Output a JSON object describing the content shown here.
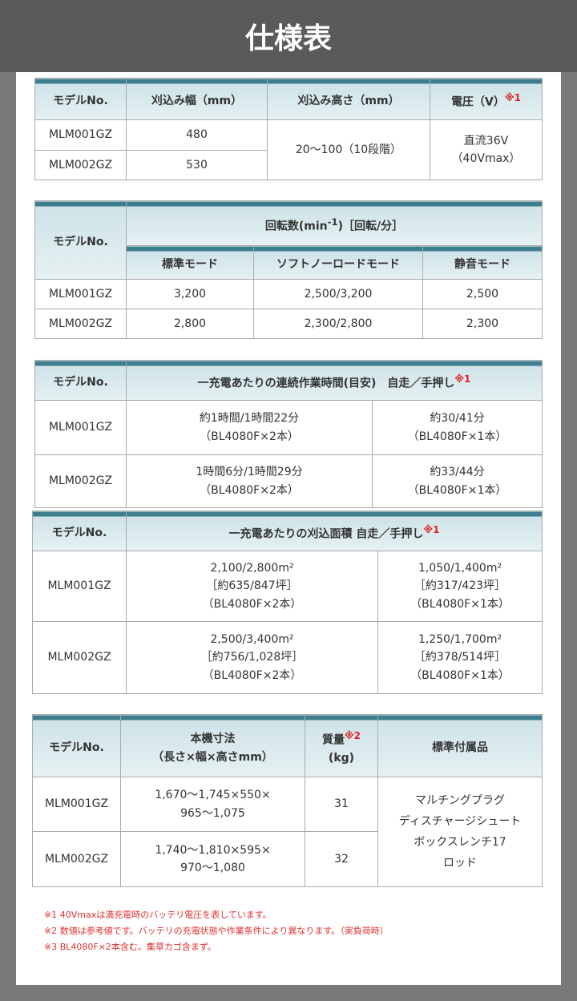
{
  "title": "仕様表",
  "t1": {
    "h": [
      "モデルNo.",
      "刈込み幅（mm）",
      "刈込み高さ（mm）",
      "電圧（V）"
    ],
    "h_note": "※1",
    "rows": [
      [
        "MLM001GZ",
        "480"
      ],
      [
        "MLM002GZ",
        "530"
      ]
    ],
    "height": "20～100（10段階）",
    "voltage1": "直流36V",
    "voltage2": "（40Vmax）"
  },
  "t2": {
    "h_model": "モデルNo.",
    "h_group": "回転数(min-1)［回転/分］",
    "h_group_a": "回転数(min",
    "h_group_sup": "-1",
    "h_group_b": ")［回転/分］",
    "h": [
      "標準モード",
      "ソフトノーロードモード",
      "静音モード"
    ],
    "rows": [
      [
        "MLM001GZ",
        "3,200",
        "2,500/3,200",
        "2,500"
      ],
      [
        "MLM002GZ",
        "2,800",
        "2,300/2,800",
        "2,300"
      ]
    ]
  },
  "t3": {
    "h_model": "モデルNo.",
    "h": "一充電あたりの連続作業時間(目安)　自走／手押し",
    "h_note": "※1",
    "rows": [
      [
        "MLM001GZ",
        "約1時間/1時間22分",
        "（BL4080F×2本）",
        "約30/41分",
        "（BL4080F×1本）"
      ],
      [
        "MLM002GZ",
        "1時間6分/1時間29分",
        "（BL4080F×2本）",
        "約33/44分",
        "（BL4080F×1本）"
      ]
    ]
  },
  "t4": {
    "h_model": "モデルNo.",
    "h": "一充電あたりの刈込面積 自走／手押し",
    "h_note": "※1",
    "rows": [
      [
        "MLM001GZ",
        "2,100/2,800m²",
        "［約635/847坪］",
        "（BL4080F×2本）",
        "1,050/1,400m²",
        "［約317/423坪］",
        "（BL4080F×1本）"
      ],
      [
        "MLM002GZ",
        "2,500/3,400m²",
        "［約756/1,028坪］",
        "（BL4080F×2本）",
        "1,250/1,700m²",
        "［約378/514坪］",
        "（BL4080F×1本）"
      ]
    ]
  },
  "t5": {
    "h_model": "モデルNo.",
    "h_dim1": "本機寸法",
    "h_dim2": "（長さ×幅×高さmm）",
    "h_mass": "質量",
    "h_mass_note": "※2",
    "h_mass_unit": "(kg)",
    "h_acc": "標準付属品",
    "rows": [
      [
        "MLM001GZ",
        "1,670～1,745×550×",
        "965～1,075",
        "31"
      ],
      [
        "MLM002GZ",
        "1,740～1,810×595×",
        "970～1,080",
        "32"
      ]
    ],
    "accessories": [
      "マルチングプラグ",
      "ディスチャージシュート",
      "ボックスレンチ17",
      "ロッド"
    ]
  },
  "notes": [
    "※1 40Vmaxは満充電時のバッテリ電圧を表しています。",
    "※2 数値は参考値です。バッテリの充電状態や作業条件により異なります。（実負荷時）",
    "※3 BL4080F×2本含む。集草カゴ含まず。"
  ]
}
